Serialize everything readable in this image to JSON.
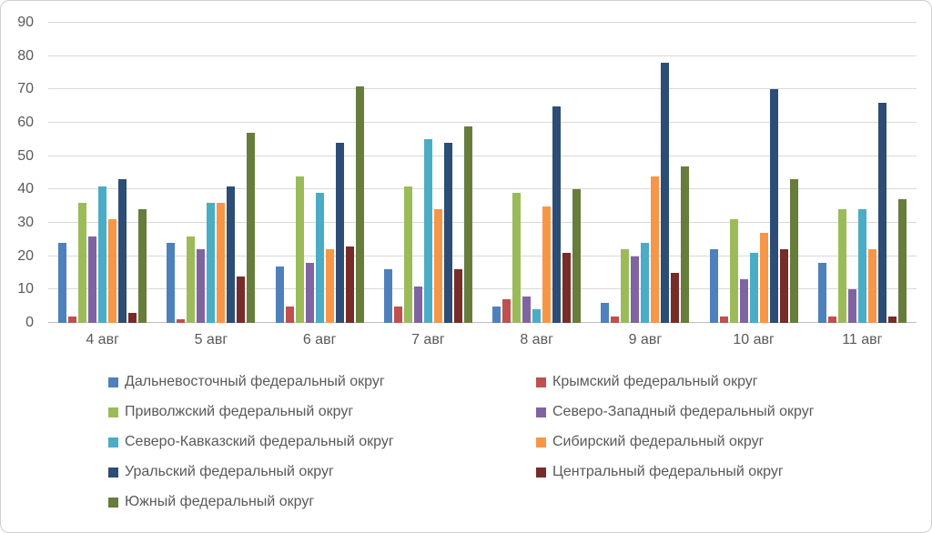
{
  "chart_data": {
    "type": "bar",
    "title": "",
    "xlabel": "",
    "ylabel": "",
    "grid": true,
    "legend_position": "bottom",
    "y_axis": {
      "min": 0,
      "max": 90,
      "step": 10,
      "ticks": [
        "0",
        "10",
        "20",
        "30",
        "40",
        "50",
        "60",
        "70",
        "80",
        "90"
      ]
    },
    "categories": [
      "4 авг",
      "5 авг",
      "6 авг",
      "7 авг",
      "8 авг",
      "9 авг",
      "10 авг",
      "11 авг"
    ],
    "series": [
      {
        "name": "Дальневосточный федеральный округ",
        "color": "#4e81bc",
        "values": [
          24,
          24,
          17,
          16,
          5,
          6,
          22,
          18
        ]
      },
      {
        "name": "Крымский федеральный округ",
        "color": "#c0504d",
        "values": [
          2,
          1,
          5,
          5,
          7,
          2,
          2,
          2
        ]
      },
      {
        "name": "Приволжский федеральный округ",
        "color": "#9bbb59",
        "values": [
          36,
          26,
          44,
          41,
          39,
          22,
          31,
          34
        ]
      },
      {
        "name": "Северо-Западный федеральный округ",
        "color": "#8064a2",
        "values": [
          26,
          22,
          18,
          11,
          8,
          20,
          13,
          10
        ]
      },
      {
        "name": "Северо-Кавказский федеральный округ",
        "color": "#4bacc6",
        "values": [
          41,
          36,
          39,
          55,
          4,
          24,
          21,
          34
        ]
      },
      {
        "name": "Сибирский федеральный округ",
        "color": "#f79646",
        "values": [
          31,
          36,
          22,
          34,
          35,
          44,
          27,
          22
        ]
      },
      {
        "name": "Уральский федеральный округ",
        "color": "#2c4d75",
        "values": [
          43,
          41,
          54,
          54,
          65,
          78,
          70,
          66
        ]
      },
      {
        "name": "Центральный федеральный округ",
        "color": "#772c2a",
        "values": [
          3,
          14,
          23,
          16,
          21,
          15,
          22,
          2
        ]
      },
      {
        "name": "Южный федеральный округ",
        "color": "#677d3b",
        "values": [
          34,
          57,
          71,
          59,
          40,
          47,
          43,
          37
        ]
      }
    ],
    "colors": {
      "gridline": "#d9d9d9",
      "axis_line": "#bfbfbf",
      "tick_text": "#595959"
    }
  }
}
